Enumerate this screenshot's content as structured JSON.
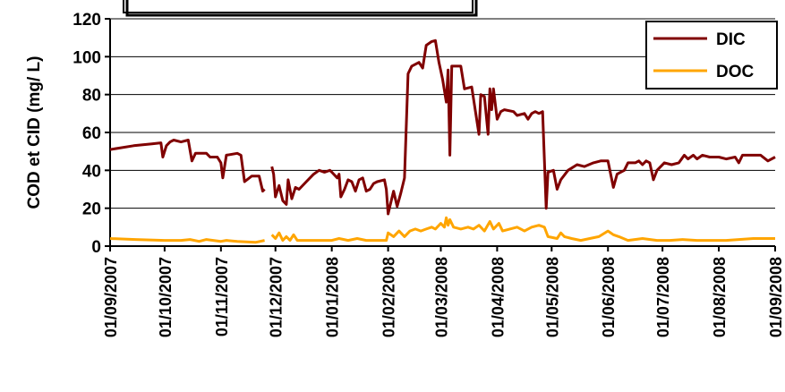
{
  "chart_data": {
    "type": "line",
    "title": "",
    "xlabel": "",
    "ylabel": "COD et CID (mg/ L)",
    "ylim": [
      0,
      120
    ],
    "yticks": [
      0,
      20,
      40,
      60,
      80,
      100,
      120
    ],
    "xlim": [
      "2007-09-01",
      "2008-09-01"
    ],
    "xtick_labels": [
      "01/09/2007",
      "01/10/2007",
      "01/11/2007",
      "01/12/2007",
      "01/01/2008",
      "01/02/2008",
      "01/03/2008",
      "01/04/2008",
      "01/05/2008",
      "01/06/2008",
      "01/07/2008",
      "01/08/2008",
      "01/09/2008"
    ],
    "grid": "horizontal",
    "legend_position": "top-right",
    "series": [
      {
        "name": "DIC",
        "color": "#800000",
        "segments": [
          [
            [
              "2007-09-01",
              51
            ],
            [
              "2007-09-14",
              53
            ],
            [
              "2007-09-24",
              54
            ],
            [
              "2007-09-29",
              54.5
            ],
            [
              "2007-09-30",
              47
            ],
            [
              "2007-10-02",
              53
            ],
            [
              "2007-10-04",
              55
            ],
            [
              "2007-10-06",
              56
            ],
            [
              "2007-10-10",
              55
            ],
            [
              "2007-10-14",
              56
            ],
            [
              "2007-10-16",
              45
            ],
            [
              "2007-10-18",
              49
            ],
            [
              "2007-10-24",
              49
            ],
            [
              "2007-10-26",
              47
            ],
            [
              "2007-10-30",
              47
            ],
            [
              "2007-11-01",
              44
            ],
            [
              "2007-11-02",
              36
            ],
            [
              "2007-11-04",
              48
            ],
            [
              "2007-11-10",
              49
            ],
            [
              "2007-11-12",
              48
            ],
            [
              "2007-11-14",
              34
            ],
            [
              "2007-11-18",
              37
            ],
            [
              "2007-11-22",
              37
            ],
            [
              "2007-11-24",
              29
            ],
            [
              "2007-11-25",
              30
            ]
          ],
          [
            [
              "2007-11-29",
              42
            ],
            [
              "2007-11-30",
              38
            ],
            [
              "2007-12-01",
              26
            ],
            [
              "2007-12-03",
              32
            ],
            [
              "2007-12-05",
              24
            ],
            [
              "2007-12-07",
              22
            ],
            [
              "2007-12-08",
              35
            ],
            [
              "2007-12-10",
              25
            ],
            [
              "2007-12-12",
              31
            ],
            [
              "2007-12-14",
              30
            ],
            [
              "2007-12-18",
              34
            ],
            [
              "2007-12-22",
              38
            ],
            [
              "2007-12-25",
              40
            ],
            [
              "2007-12-28",
              39
            ],
            [
              "2007-12-31",
              40
            ],
            [
              "2008-01-01",
              39
            ],
            [
              "2008-01-04",
              36
            ],
            [
              "2008-01-05",
              38
            ],
            [
              "2008-01-06",
              26
            ],
            [
              "2008-01-08",
              30
            ],
            [
              "2008-01-10",
              35
            ],
            [
              "2008-01-12",
              34
            ],
            [
              "2008-01-14",
              29
            ],
            [
              "2008-01-16",
              35
            ],
            [
              "2008-01-18",
              36
            ],
            [
              "2008-01-20",
              29
            ],
            [
              "2008-01-22",
              30
            ],
            [
              "2008-01-24",
              33
            ],
            [
              "2008-01-26",
              34
            ],
            [
              "2008-01-30",
              35
            ],
            [
              "2008-01-31",
              30
            ],
            [
              "2008-02-01",
              17
            ],
            [
              "2008-02-02",
              21
            ],
            [
              "2008-02-04",
              29
            ],
            [
              "2008-02-06",
              21
            ],
            [
              "2008-02-08",
              28
            ],
            [
              "2008-02-10",
              36
            ],
            [
              "2008-02-12",
              91
            ],
            [
              "2008-02-14",
              95
            ],
            [
              "2008-02-18",
              97
            ],
            [
              "2008-02-20",
              94
            ],
            [
              "2008-02-22",
              106
            ],
            [
              "2008-02-25",
              108
            ],
            [
              "2008-02-27",
              108.5
            ],
            [
              "2008-02-29",
              97
            ],
            [
              "2008-03-02",
              88
            ],
            [
              "2008-03-04",
              76
            ],
            [
              "2008-03-05",
              93
            ],
            [
              "2008-03-06",
              48
            ],
            [
              "2008-03-07",
              95
            ],
            [
              "2008-03-12",
              95
            ],
            [
              "2008-03-14",
              83
            ],
            [
              "2008-03-18",
              84
            ],
            [
              "2008-03-22",
              59
            ],
            [
              "2008-03-23",
              80
            ],
            [
              "2008-03-25",
              79
            ],
            [
              "2008-03-27",
              59
            ],
            [
              "2008-03-28",
              83
            ],
            [
              "2008-03-29",
              72
            ],
            [
              "2008-03-30",
              83
            ],
            [
              "2008-04-01",
              67
            ],
            [
              "2008-04-03",
              71
            ],
            [
              "2008-04-05",
              72
            ],
            [
              "2008-04-10",
              71
            ],
            [
              "2008-04-12",
              69
            ],
            [
              "2008-04-16",
              70
            ],
            [
              "2008-04-18",
              67
            ],
            [
              "2008-04-20",
              70
            ],
            [
              "2008-04-22",
              71
            ],
            [
              "2008-04-24",
              70
            ],
            [
              "2008-04-26",
              71
            ],
            [
              "2008-04-28",
              20
            ],
            [
              "2008-04-29",
              39
            ],
            [
              "2008-05-02",
              40
            ],
            [
              "2008-05-04",
              30
            ],
            [
              "2008-05-06",
              35
            ],
            [
              "2008-05-10",
              40
            ],
            [
              "2008-05-15",
              43
            ],
            [
              "2008-05-19",
              42
            ],
            [
              "2008-05-24",
              44
            ],
            [
              "2008-05-28",
              45
            ],
            [
              "2008-06-01",
              45
            ],
            [
              "2008-06-04",
              31
            ],
            [
              "2008-06-06",
              38
            ],
            [
              "2008-06-08",
              39
            ],
            [
              "2008-06-10",
              40
            ],
            [
              "2008-06-12",
              44
            ],
            [
              "2008-06-16",
              44
            ],
            [
              "2008-06-18",
              45
            ],
            [
              "2008-06-20",
              43
            ],
            [
              "2008-06-22",
              45
            ],
            [
              "2008-06-24",
              44
            ],
            [
              "2008-06-26",
              35
            ],
            [
              "2008-06-28",
              40
            ],
            [
              "2008-07-02",
              44
            ],
            [
              "2008-07-06",
              43
            ],
            [
              "2008-07-10",
              44
            ],
            [
              "2008-07-13",
              48
            ],
            [
              "2008-07-15",
              46
            ],
            [
              "2008-07-18",
              48
            ],
            [
              "2008-07-20",
              46
            ],
            [
              "2008-07-23",
              48
            ],
            [
              "2008-07-27",
              47
            ],
            [
              "2008-08-01",
              47
            ],
            [
              "2008-08-05",
              46
            ],
            [
              "2008-08-10",
              47
            ],
            [
              "2008-08-12",
              44
            ],
            [
              "2008-08-14",
              48
            ],
            [
              "2008-08-18",
              48
            ],
            [
              "2008-08-24",
              48
            ],
            [
              "2008-08-28",
              45
            ],
            [
              "2008-09-01",
              47
            ]
          ]
        ]
      },
      {
        "name": "DOC",
        "color": "#FFA500",
        "segments": [
          [
            [
              "2007-09-01",
              4
            ],
            [
              "2007-09-15",
              3.5
            ],
            [
              "2007-10-01",
              3
            ],
            [
              "2007-10-10",
              3
            ],
            [
              "2007-10-15",
              3.5
            ],
            [
              "2007-10-20",
              2.5
            ],
            [
              "2007-10-24",
              3.5
            ],
            [
              "2007-11-01",
              2.5
            ],
            [
              "2007-11-04",
              3
            ],
            [
              "2007-11-10",
              2.5
            ],
            [
              "2007-11-20",
              2
            ],
            [
              "2007-11-25",
              3
            ]
          ],
          [
            [
              "2007-11-29",
              6
            ],
            [
              "2007-12-01",
              4
            ],
            [
              "2007-12-03",
              7
            ],
            [
              "2007-12-05",
              3
            ],
            [
              "2007-12-07",
              5
            ],
            [
              "2007-12-09",
              3
            ],
            [
              "2007-12-11",
              6
            ],
            [
              "2007-12-13",
              3
            ],
            [
              "2007-12-18",
              3
            ],
            [
              "2007-12-24",
              3
            ],
            [
              "2007-12-28",
              3
            ],
            [
              "2008-01-01",
              3
            ],
            [
              "2008-01-05",
              4
            ],
            [
              "2008-01-10",
              3
            ],
            [
              "2008-01-15",
              4
            ],
            [
              "2008-01-20",
              3
            ],
            [
              "2008-01-25",
              3
            ],
            [
              "2008-01-31",
              3
            ],
            [
              "2008-02-01",
              7
            ],
            [
              "2008-02-04",
              5
            ],
            [
              "2008-02-07",
              8
            ],
            [
              "2008-02-10",
              5
            ],
            [
              "2008-02-13",
              8
            ],
            [
              "2008-02-16",
              9
            ],
            [
              "2008-02-19",
              8
            ],
            [
              "2008-02-22",
              9
            ],
            [
              "2008-02-25",
              10
            ],
            [
              "2008-02-27",
              9
            ],
            [
              "2008-03-01",
              12
            ],
            [
              "2008-03-03",
              10
            ],
            [
              "2008-03-04",
              15
            ],
            [
              "2008-03-05",
              11
            ],
            [
              "2008-03-06",
              14
            ],
            [
              "2008-03-08",
              10
            ],
            [
              "2008-03-12",
              9
            ],
            [
              "2008-03-16",
              10
            ],
            [
              "2008-03-19",
              9
            ],
            [
              "2008-03-22",
              11
            ],
            [
              "2008-03-25",
              8
            ],
            [
              "2008-03-28",
              13
            ],
            [
              "2008-03-30",
              9
            ],
            [
              "2008-04-02",
              12
            ],
            [
              "2008-04-04",
              8
            ],
            [
              "2008-04-08",
              9
            ],
            [
              "2008-04-12",
              10
            ],
            [
              "2008-04-16",
              8
            ],
            [
              "2008-04-20",
              10
            ],
            [
              "2008-04-24",
              11
            ],
            [
              "2008-04-27",
              10
            ],
            [
              "2008-04-29",
              5
            ],
            [
              "2008-05-04",
              4
            ],
            [
              "2008-05-06",
              7
            ],
            [
              "2008-05-08",
              5
            ],
            [
              "2008-05-12",
              4
            ],
            [
              "2008-05-17",
              3
            ],
            [
              "2008-05-22",
              4
            ],
            [
              "2008-05-27",
              5
            ],
            [
              "2008-06-01",
              8
            ],
            [
              "2008-06-04",
              6
            ],
            [
              "2008-06-07",
              5
            ],
            [
              "2008-06-12",
              3
            ],
            [
              "2008-06-20",
              4
            ],
            [
              "2008-06-28",
              3
            ],
            [
              "2008-07-05",
              3
            ],
            [
              "2008-07-12",
              3.5
            ],
            [
              "2008-07-20",
              3
            ],
            [
              "2008-07-28",
              3
            ],
            [
              "2008-08-05",
              3
            ],
            [
              "2008-08-12",
              3.5
            ],
            [
              "2008-08-20",
              4
            ],
            [
              "2008-09-01",
              4
            ]
          ]
        ]
      }
    ]
  }
}
